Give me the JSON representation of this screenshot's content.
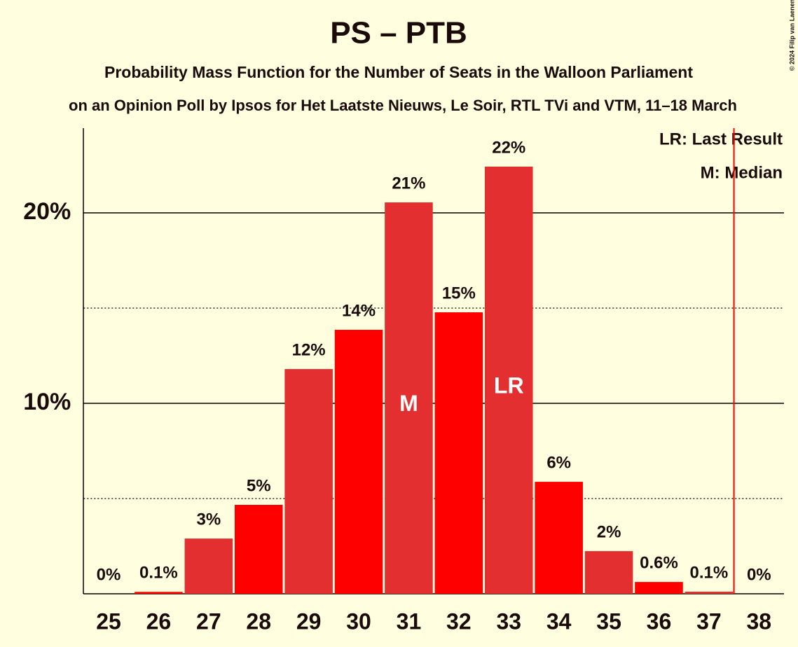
{
  "chart_data": {
    "type": "bar",
    "title": "PS – PTB",
    "subtitle": "Probability Mass Function for the Number of Seats in the Walloon Parliament",
    "subtitle2": "on an Opinion Poll by Ipsos for Het Laatste Nieuws, Le Soir, RTL TVi and VTM, 11–18 March",
    "credit": "© 2024 Filip van Laenen",
    "x": [
      25,
      26,
      27,
      28,
      29,
      30,
      31,
      32,
      33,
      34,
      35,
      36,
      37,
      38
    ],
    "values": [
      0,
      0.1,
      2.9,
      4.67,
      11.8,
      13.86,
      20.55,
      14.78,
      22.43,
      5.88,
      2.24,
      0.62,
      0.11,
      0
    ],
    "value_labels": [
      "0%",
      "0.1%",
      "3%",
      "5%",
      "12%",
      "14%",
      "21%",
      "15%",
      "22%",
      "6%",
      "2%",
      "0.6%",
      "0.1%",
      "0%"
    ],
    "colors": [
      "#e32f2f",
      "#ff0000",
      "#e32f2f",
      "#ff0000",
      "#e32f2f",
      "#ff0000",
      "#e32f2f",
      "#ff0000",
      "#e32f2f",
      "#ff0000",
      "#e32f2f",
      "#ff0000",
      "#e32f2f",
      "#ff0000"
    ],
    "xlim": [
      24.5,
      38.5
    ],
    "ylim": [
      0,
      24.45
    ],
    "yticks": [
      {
        "value": 10,
        "label": "10%"
      },
      {
        "value": 20,
        "label": "20%"
      }
    ],
    "minor_yticks": [
      5,
      15
    ],
    "majority_line": 37.5,
    "majority_color": "#ff0000",
    "markers": [
      {
        "label": "M",
        "x": 31
      },
      {
        "label": "LR",
        "x": 33
      }
    ],
    "legend": [
      "LR: Last Result",
      "M: Median"
    ]
  }
}
